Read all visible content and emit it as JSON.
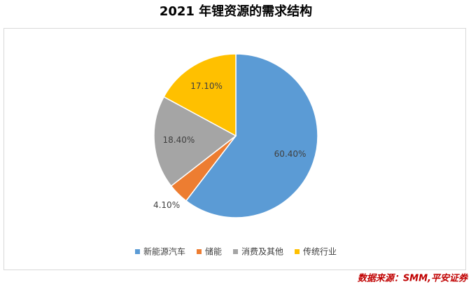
{
  "chart_data": {
    "type": "pie",
    "title": "2021 年锂资源的需求结构",
    "categories": [
      "新能源汽车",
      "储能",
      "消费及其他",
      "传统行业"
    ],
    "values": [
      60.4,
      4.1,
      18.4,
      17.1
    ],
    "value_labels": [
      "60.40%",
      "4.10%",
      "18.40%",
      "17.10%"
    ],
    "colors": [
      "#5b9bd5",
      "#ed7d31",
      "#a5a5a5",
      "#ffc000"
    ],
    "legend": "bottom",
    "source": "数据来源：SMM,平安证券"
  }
}
